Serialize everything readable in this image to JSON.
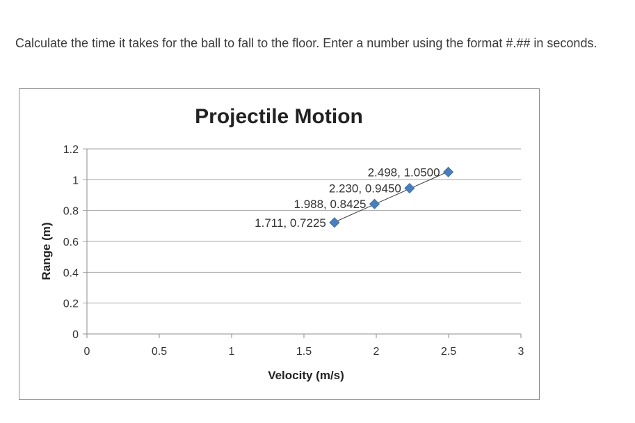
{
  "question": {
    "text": "Calculate the time it takes for the ball to fall to the floor.  Enter a number using the format #.## in seconds."
  },
  "chart_data": {
    "type": "scatter",
    "title": "Projectile Motion",
    "xlabel": "Velocity (m/s)",
    "ylabel": "Range (m)",
    "xlim": [
      0,
      3
    ],
    "ylim": [
      0,
      1.2
    ],
    "x_ticks": [
      0,
      0.5,
      1,
      1.5,
      2,
      2.5,
      3
    ],
    "x_tick_labels": [
      "0",
      "0.5",
      "1",
      "1.5",
      "2",
      "2.5",
      "3"
    ],
    "y_ticks": [
      0,
      0.2,
      0.4,
      0.6,
      0.8,
      1,
      1.2
    ],
    "y_tick_labels": [
      "0",
      "0.2",
      "0.4",
      "0.6",
      "0.8",
      "1",
      "1.2"
    ],
    "grid": true,
    "legend": false,
    "trendline": "linear",
    "marker_color": "#4a7ebb",
    "series": [
      {
        "x": [
          1.711,
          1.988,
          2.23,
          2.498
        ],
        "y": [
          0.7225,
          0.8425,
          0.945,
          1.05
        ],
        "labels": [
          "1.711, 0.7225",
          "1.988, 0.8425",
          "2.230, 0.9450",
          "2.498, 1.0500"
        ]
      }
    ]
  }
}
